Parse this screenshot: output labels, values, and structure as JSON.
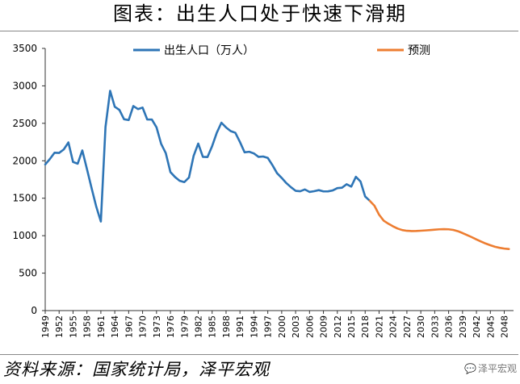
{
  "chart_data": {
    "type": "line",
    "title": "图表：出生人口处于快速下滑期",
    "legend_position": "top",
    "grid": false,
    "ylim": [
      0,
      3500
    ],
    "yticks": [
      0,
      500,
      1000,
      1500,
      2000,
      2500,
      3000,
      3500
    ],
    "xlim": [
      1949,
      2050
    ],
    "xticks": [
      "1949",
      "1952",
      "1955",
      "1958",
      "1961",
      "1964",
      "1967",
      "1970",
      "1973",
      "1976",
      "1979",
      "1982",
      "1985",
      "1988",
      "1991",
      "1994",
      "1997",
      "2000",
      "2003",
      "2006",
      "2009",
      "2012",
      "2015",
      "2018",
      "2021",
      "2024",
      "2027",
      "2030",
      "2033",
      "2036",
      "2039",
      "2042",
      "2045",
      "2048"
    ],
    "series": [
      {
        "name": "出生人口（万人）",
        "color": "#2e75b6",
        "points": [
          [
            1949,
            1950
          ],
          [
            1950,
            2023
          ],
          [
            1951,
            2107
          ],
          [
            1952,
            2105
          ],
          [
            1953,
            2151
          ],
          [
            1954,
            2245
          ],
          [
            1955,
            1984
          ],
          [
            1956,
            1961
          ],
          [
            1957,
            2138
          ],
          [
            1958,
            1889
          ],
          [
            1959,
            1635
          ],
          [
            1960,
            1389
          ],
          [
            1961,
            1189
          ],
          [
            1962,
            2451
          ],
          [
            1963,
            2934
          ],
          [
            1964,
            2721
          ],
          [
            1965,
            2679
          ],
          [
            1966,
            2554
          ],
          [
            1967,
            2543
          ],
          [
            1968,
            2731
          ],
          [
            1969,
            2690
          ],
          [
            1970,
            2710
          ],
          [
            1971,
            2551
          ],
          [
            1972,
            2550
          ],
          [
            1973,
            2447
          ],
          [
            1974,
            2226
          ],
          [
            1975,
            2102
          ],
          [
            1976,
            1849
          ],
          [
            1977,
            1783
          ],
          [
            1978,
            1733
          ],
          [
            1979,
            1715
          ],
          [
            1980,
            1776
          ],
          [
            1981,
            2064
          ],
          [
            1982,
            2230
          ],
          [
            1983,
            2052
          ],
          [
            1984,
            2050
          ],
          [
            1985,
            2196
          ],
          [
            1986,
            2374
          ],
          [
            1987,
            2508
          ],
          [
            1988,
            2445
          ],
          [
            1989,
            2396
          ],
          [
            1990,
            2374
          ],
          [
            1991,
            2250
          ],
          [
            1992,
            2113
          ],
          [
            1993,
            2120
          ],
          [
            1994,
            2098
          ],
          [
            1995,
            2052
          ],
          [
            1996,
            2057
          ],
          [
            1997,
            2038
          ],
          [
            1998,
            1942
          ],
          [
            1999,
            1834
          ],
          [
            2000,
            1771
          ],
          [
            2001,
            1702
          ],
          [
            2002,
            1647
          ],
          [
            2003,
            1599
          ],
          [
            2004,
            1593
          ],
          [
            2005,
            1617
          ],
          [
            2006,
            1584
          ],
          [
            2007,
            1594
          ],
          [
            2008,
            1608
          ],
          [
            2009,
            1591
          ],
          [
            2010,
            1592
          ],
          [
            2011,
            1604
          ],
          [
            2012,
            1635
          ],
          [
            2013,
            1640
          ],
          [
            2014,
            1687
          ],
          [
            2015,
            1655
          ],
          [
            2016,
            1786
          ],
          [
            2017,
            1723
          ],
          [
            2018,
            1523
          ],
          [
            2019,
            1465
          ]
        ]
      },
      {
        "name": "预测",
        "color": "#ed7d31",
        "points": [
          [
            2019,
            1465
          ],
          [
            2020,
            1400
          ],
          [
            2021,
            1280
          ],
          [
            2022,
            1200
          ],
          [
            2023,
            1160
          ],
          [
            2024,
            1125
          ],
          [
            2025,
            1095
          ],
          [
            2026,
            1075
          ],
          [
            2027,
            1065
          ],
          [
            2028,
            1062
          ],
          [
            2029,
            1063
          ],
          [
            2030,
            1066
          ],
          [
            2031,
            1070
          ],
          [
            2032,
            1075
          ],
          [
            2033,
            1080
          ],
          [
            2034,
            1085
          ],
          [
            2035,
            1087
          ],
          [
            2036,
            1085
          ],
          [
            2037,
            1077
          ],
          [
            2038,
            1060
          ],
          [
            2039,
            1035
          ],
          [
            2040,
            1008
          ],
          [
            2041,
            980
          ],
          [
            2042,
            950
          ],
          [
            2043,
            922
          ],
          [
            2044,
            895
          ],
          [
            2045,
            872
          ],
          [
            2046,
            852
          ],
          [
            2047,
            838
          ],
          [
            2048,
            828
          ],
          [
            2049,
            822
          ]
        ]
      }
    ]
  },
  "footer": {
    "source": "资料来源：国家统计局，泽平宏观",
    "watermark": "泽平宏观"
  }
}
